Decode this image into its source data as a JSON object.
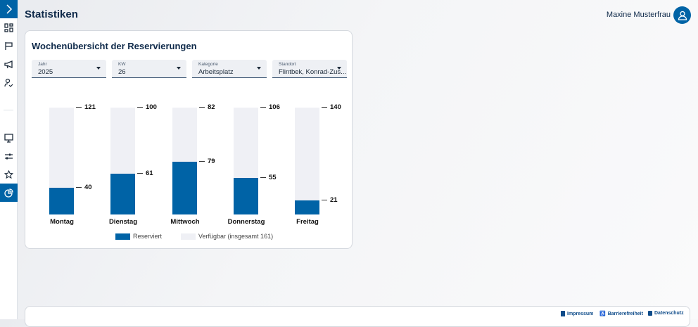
{
  "page": {
    "title": "Statistiken",
    "user_name": "Maxine Musterfrau"
  },
  "sidebar": {
    "items": [
      {
        "icon": "chevron-right-icon"
      },
      {
        "icon": "dashboard-icon"
      },
      {
        "icon": "flag-icon"
      },
      {
        "icon": "megaphone-icon"
      },
      {
        "icon": "user-check-icon"
      },
      {
        "icon": "monitor-icon"
      },
      {
        "icon": "sliders-icon"
      },
      {
        "icon": "star-icon"
      },
      {
        "icon": "pie-chart-icon",
        "active": true
      }
    ]
  },
  "card": {
    "title": "Wochenübersicht der Reservierungen",
    "filters": [
      {
        "label": "Jahr",
        "value": "2025"
      },
      {
        "label": "KW",
        "value": "26"
      },
      {
        "label": "Kategorie",
        "value": "Arbeitsplatz"
      },
      {
        "label": "Standort",
        "value": "Flintbek, Konrad-Zus..."
      }
    ]
  },
  "chart_data": {
    "type": "bar",
    "stacked": true,
    "total": 161,
    "categories": [
      "Montag",
      "Dienstag",
      "Mittwoch",
      "Donnerstag",
      "Freitag"
    ],
    "series": [
      {
        "name": "Reserviert",
        "values": [
          40,
          61,
          79,
          55,
          21
        ],
        "color": "#0063a6"
      },
      {
        "name": "Verfügbar (insgesamt 161)",
        "values": [
          121,
          100,
          82,
          106,
          140
        ],
        "color": "#eff0f5"
      }
    ],
    "legend": "bottom"
  },
  "footer": {
    "links": [
      "Impressum",
      "Barrierefreiheit",
      "Datenschutz"
    ]
  }
}
